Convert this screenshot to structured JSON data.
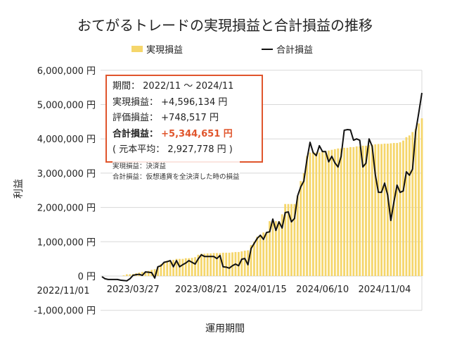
{
  "chart_data": {
    "type": "bar+line",
    "title": "おてがるトレードの実現損益と合計損益の推移",
    "xlabel": "運用期間",
    "ylabel": "利益",
    "ylim": [
      -1000000,
      6000000
    ],
    "y_ticks": [
      "-1,000,000 円",
      "0 円",
      "1,000,000 円",
      "2,000,000 円",
      "3,000,000 円",
      "4,000,000 円",
      "5,000,000 円",
      "6,000,000 円"
    ],
    "y_tick_values": [
      -1000000,
      0,
      1000000,
      2000000,
      3000000,
      4000000,
      5000000,
      6000000
    ],
    "x_ticks": [
      {
        "label": "2022/11/01",
        "index": 0
      },
      {
        "label": "2023/03/27",
        "index": 10
      },
      {
        "label": "2023/08/21",
        "index": 32
      },
      {
        "label": "2024/01/15",
        "index": 51
      },
      {
        "label": "2024/06/10",
        "index": 71
      },
      {
        "label": "2024/11/04",
        "index": 91
      }
    ],
    "grid": true,
    "legend_placement": "top-center",
    "colors": {
      "bar": "#f5d66b",
      "line": "#111111",
      "highlight": "#e0552c"
    },
    "series": [
      {
        "name": "実現損益",
        "type": "bar",
        "unit": "million yen",
        "values": [
          0,
          0,
          0,
          0,
          0,
          0,
          0,
          0.02,
          0.05,
          0.05,
          0.06,
          0.08,
          0.1,
          0.12,
          0.12,
          0.15,
          0.18,
          0.2,
          0.27,
          0.35,
          0.4,
          0.45,
          0.45,
          0.47,
          0.5,
          0.5,
          0.5,
          0.52,
          0.52,
          0.53,
          0.55,
          0.62,
          0.65,
          0.65,
          0.66,
          0.66,
          0.67,
          0.67,
          0.67,
          0.68,
          0.68,
          0.68,
          0.69,
          0.7,
          0.7,
          0.72,
          0.74,
          0.75,
          0.9,
          1.0,
          1.15,
          1.2,
          1.27,
          1.29,
          1.6,
          1.6,
          1.6,
          1.6,
          1.8,
          2.1,
          2.1,
          2.1,
          2.1,
          2.34,
          2.77,
          3.0,
          3.5,
          3.6,
          3.6,
          3.6,
          3.6,
          3.65,
          3.65,
          3.66,
          3.68,
          3.7,
          3.72,
          3.72,
          3.74,
          3.74,
          3.76,
          3.76,
          3.78,
          3.78,
          3.8,
          3.8,
          3.82,
          3.83,
          3.84,
          3.85,
          3.85,
          3.86,
          3.86,
          3.87,
          3.88,
          3.88,
          3.9,
          3.95,
          4.05,
          4.1,
          4.2,
          4.3,
          4.45,
          4.6
        ]
      },
      {
        "name": "合計損益",
        "type": "line",
        "unit": "million yen",
        "values": [
          -0.02,
          -0.08,
          -0.1,
          -0.1,
          -0.1,
          -0.1,
          -0.12,
          -0.13,
          -0.14,
          -0.08,
          0.02,
          0.04,
          0.05,
          0.02,
          0.12,
          0.11,
          0.1,
          -0.06,
          0.27,
          0.3,
          0.4,
          0.42,
          0.45,
          0.27,
          0.45,
          0.27,
          0.33,
          0.38,
          0.45,
          0.4,
          0.35,
          0.5,
          0.62,
          0.57,
          0.57,
          0.57,
          0.57,
          0.51,
          0.6,
          0.27,
          0.26,
          0.23,
          0.3,
          0.35,
          0.3,
          0.49,
          0.51,
          0.33,
          0.8,
          0.95,
          1.1,
          1.19,
          1.07,
          1.27,
          1.29,
          1.66,
          1.33,
          1.58,
          1.4,
          1.85,
          1.87,
          1.58,
          1.68,
          2.34,
          2.6,
          2.77,
          3.4,
          3.9,
          3.6,
          3.51,
          3.8,
          3.63,
          3.63,
          3.33,
          3.49,
          3.3,
          3.18,
          3.49,
          4.25,
          4.27,
          4.26,
          3.96,
          4.0,
          3.96,
          3.18,
          3.29,
          4.0,
          3.78,
          2.96,
          2.44,
          2.44,
          2.71,
          2.36,
          1.62,
          2.16,
          2.65,
          2.44,
          2.48,
          3.04,
          2.94,
          3.12,
          4.21,
          4.76,
          5.34
        ]
      }
    ]
  },
  "infobox": {
    "period_label": "期間：",
    "period_value": "2022/11 ～ 2024/11",
    "realized_label": "実現損益：",
    "realized_value": "+4,596,134 円",
    "unrealized_label": "評価損益：",
    "unrealized_value": "+748,517 円",
    "total_label": "合計損益：",
    "total_value": "+5,344,651 円",
    "principal_text": "( 元本平均： 2,927,778 円 )"
  },
  "notes": [
    "実現損益：決済益",
    "合計損益：仮想通貨を全決済した時の損益"
  ]
}
